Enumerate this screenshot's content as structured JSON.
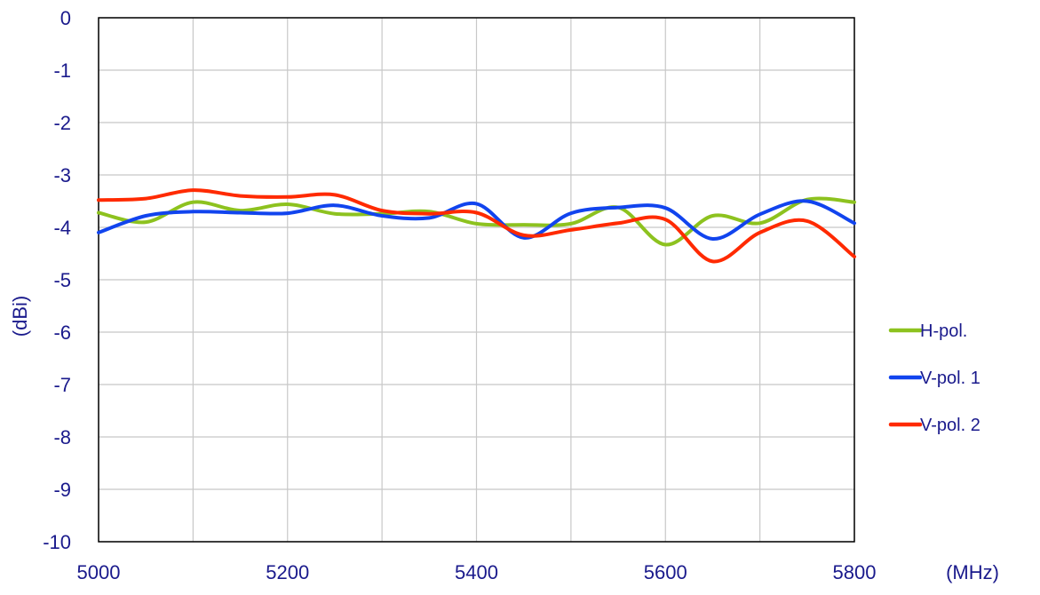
{
  "chart_data": {
    "type": "line",
    "title": "",
    "xlabel": "(MHz)",
    "ylabel": "(dBi)",
    "xlim": [
      5000,
      5800
    ],
    "ylim": [
      -10,
      0
    ],
    "x_ticks": [
      5000,
      5200,
      5400,
      5600,
      5800
    ],
    "y_ticks": [
      0,
      -1,
      -2,
      -3,
      -4,
      -5,
      -6,
      -7,
      -8,
      -9,
      -10
    ],
    "x_tick_labels": [
      "5000",
      "5200",
      "5400",
      "5600",
      "5800"
    ],
    "y_tick_labels": [
      "0",
      "-1",
      "-2",
      "-3",
      "-4",
      "-5",
      "-6",
      "-7",
      "-8",
      "-9",
      "-10"
    ],
    "x_grid": [
      5000,
      5100,
      5200,
      5300,
      5400,
      5500,
      5600,
      5700,
      5800
    ],
    "grid": true,
    "legend_position": "right",
    "series": [
      {
        "name": "H-pol.",
        "color": "#8dc21f",
        "x": [
          5000,
          5050,
          5100,
          5150,
          5200,
          5250,
          5300,
          5350,
          5400,
          5450,
          5500,
          5550,
          5600,
          5650,
          5700,
          5750,
          5800
        ],
        "y": [
          -3.72,
          -3.9,
          -3.52,
          -3.68,
          -3.56,
          -3.74,
          -3.74,
          -3.7,
          -3.93,
          -3.95,
          -3.93,
          -3.62,
          -4.33,
          -3.78,
          -3.92,
          -3.47,
          -3.52
        ]
      },
      {
        "name": "V-pol. 1",
        "color": "#1144ee",
        "x": [
          5000,
          5050,
          5100,
          5150,
          5200,
          5250,
          5300,
          5350,
          5400,
          5450,
          5500,
          5550,
          5600,
          5650,
          5700,
          5750,
          5800
        ],
        "y": [
          -4.1,
          -3.78,
          -3.7,
          -3.72,
          -3.73,
          -3.58,
          -3.78,
          -3.82,
          -3.55,
          -4.2,
          -3.73,
          -3.62,
          -3.63,
          -4.22,
          -3.75,
          -3.5,
          -3.92
        ]
      },
      {
        "name": "V-pol. 2",
        "color": "#ff2a00",
        "x": [
          5000,
          5050,
          5100,
          5150,
          5200,
          5250,
          5300,
          5350,
          5400,
          5450,
          5500,
          5550,
          5600,
          5650,
          5700,
          5750,
          5800
        ],
        "y": [
          -3.48,
          -3.45,
          -3.29,
          -3.4,
          -3.42,
          -3.38,
          -3.68,
          -3.74,
          -3.72,
          -4.15,
          -4.05,
          -3.92,
          -3.85,
          -4.65,
          -4.1,
          -3.88,
          -4.56
        ]
      }
    ]
  }
}
